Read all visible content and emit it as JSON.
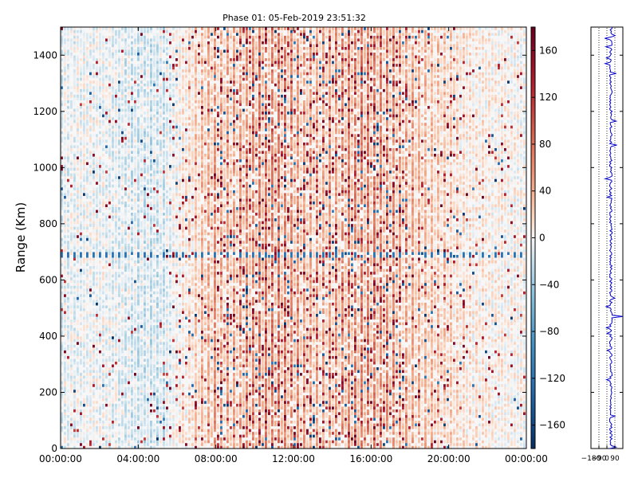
{
  "chart_data": {
    "type": "heatmap",
    "title": "Phase 01: 05-Feb-2019 23:51:32",
    "xlabel": "",
    "ylabel": "Range (Km)",
    "x_ticks": [
      "00:00:00",
      "04:00:00",
      "08:00:00",
      "12:00:00",
      "16:00:00",
      "20:00:00",
      "00:00:00"
    ],
    "xlim": [
      "00:00:00",
      "24:00:00"
    ],
    "y_ticks": [
      0,
      200,
      400,
      600,
      800,
      1000,
      1200,
      1400
    ],
    "ylim": [
      0,
      1500
    ],
    "colorbar": {
      "ticks": [
        "160",
        "120",
        "80",
        "40",
        "0",
        "−40",
        "−80",
        "−120",
        "−160"
      ],
      "range": [
        -180,
        180
      ],
      "colormap": "RdBu_r"
    },
    "side_profile": {
      "x_ticks": [
        "−180",
        "−90",
        "0",
        "90"
      ],
      "xlim": [
        -180,
        180
      ],
      "line_color": "#0000cc"
    },
    "colors": {
      "strong_red": "#67001f",
      "red": "#d6604d",
      "light_red": "#f4a582",
      "white": "#f7f7f7",
      "light_blue": "#92c5de",
      "blue": "#4393c3",
      "strong_blue": "#053061"
    },
    "summary": {
      "phase_range_deg": [
        -180,
        180
      ],
      "dominant_phase_08_to_18h_deg": [
        40,
        90
      ],
      "dominant_phase_00_to_06h_deg": [
        -40,
        20
      ],
      "horizontal_streak_range_km": 690
    }
  }
}
